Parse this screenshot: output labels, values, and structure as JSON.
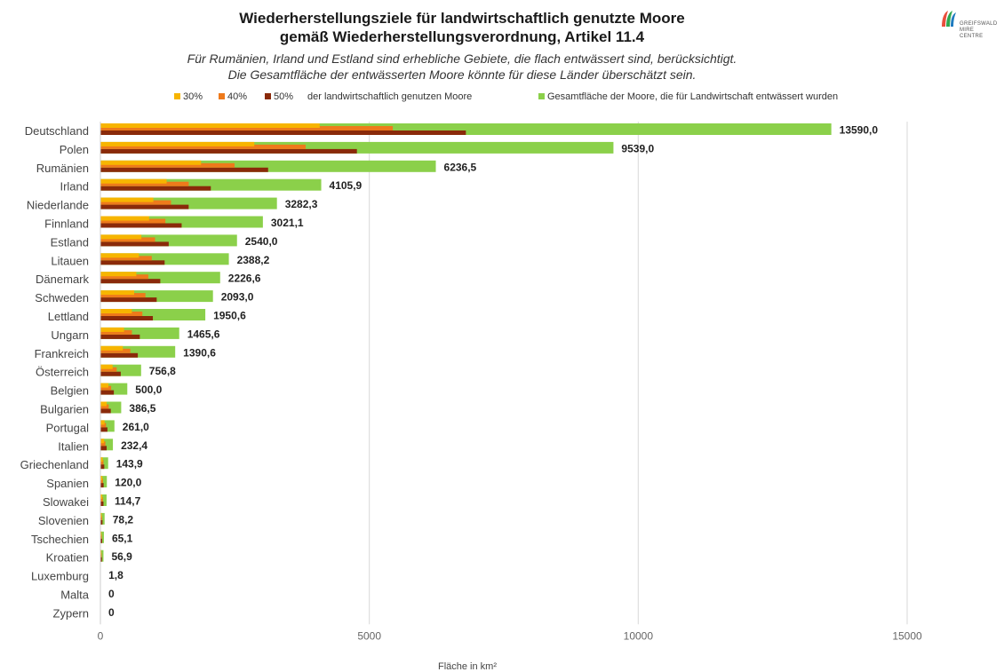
{
  "header": {
    "title_line1": "Wiederherstellungsziele für landwirtschaftlich genutzte Moore",
    "title_line2": "gemäß Wiederherstellungsverordnung, Artikel 11.4",
    "subtitle_line1": "Für Rumänien, Irland und Estland sind erhebliche Gebiete, die flach entwässert sind, berücksichtigt.",
    "subtitle_line2": "Die Gesamtfläche der entwässerten Moore könnte für diese Länder überschätzt sein."
  },
  "logo": {
    "line1": "GREIFSWALD",
    "line2": "MIRE",
    "line3": "CENTRE"
  },
  "legend": {
    "item_30": "30%",
    "item_40": "40%",
    "item_50": "50%",
    "suffix": "der landwirtschaftlich genutzen Moore",
    "total": "Gesamtfläche der Moore, die für Landwirtschaft entwässert wurden"
  },
  "colors": {
    "p30": "#f7b500",
    "p40": "#ee7a1b",
    "p50": "#8a2a0a",
    "total": "#8bd04a",
    "grid": "#d9d9d9"
  },
  "chart_data": {
    "type": "bar",
    "orientation": "horizontal",
    "categories": [
      "Deutschland",
      "Polen",
      "Rumänien",
      "Irland",
      "Niederlande",
      "Finnland",
      "Estland",
      "Litauen",
      "Dänemark",
      "Schweden",
      "Lettland",
      "Ungarn",
      "Frankreich",
      "Österreich",
      "Belgien",
      "Bulgarien",
      "Portugal",
      "Italien",
      "Griechenland",
      "Spanien",
      "Slowakei",
      "Slovenien",
      "Tschechien",
      "Kroatien",
      "Luxemburg",
      "Malta",
      "Zypern"
    ],
    "series": [
      {
        "name": "Gesamtfläche der Moore, die für Landwirtschaft entwässert wurden",
        "values": [
          13590.0,
          9539.0,
          6236.5,
          4105.9,
          3282.3,
          3021.1,
          2540.0,
          2388.2,
          2226.6,
          2093.0,
          1950.6,
          1465.6,
          1390.6,
          756.8,
          500.0,
          386.5,
          261.0,
          232.4,
          143.9,
          120.0,
          114.7,
          78.2,
          65.1,
          56.9,
          1.8,
          0,
          0
        ]
      },
      {
        "name": "30%",
        "values": [
          4077.0,
          2861.7,
          1871.0,
          1231.8,
          984.7,
          906.3,
          762.0,
          716.5,
          668.0,
          627.9,
          585.2,
          439.7,
          417.2,
          227.0,
          150.0,
          116.0,
          78.3,
          69.7,
          43.2,
          36.0,
          34.4,
          23.5,
          19.5,
          17.1,
          0.5,
          0,
          0
        ]
      },
      {
        "name": "40%",
        "values": [
          5436.0,
          3815.6,
          2494.6,
          1642.4,
          1312.9,
          1208.4,
          1016.0,
          955.3,
          890.6,
          837.2,
          780.2,
          586.2,
          556.2,
          302.7,
          200.0,
          154.6,
          104.4,
          93.0,
          57.6,
          48.0,
          45.9,
          31.3,
          26.0,
          22.8,
          0.7,
          0,
          0
        ]
      },
      {
        "name": "50%",
        "values": [
          6795.0,
          4769.5,
          3118.3,
          2053.0,
          1641.2,
          1510.6,
          1270.0,
          1194.1,
          1113.3,
          1046.5,
          975.3,
          732.8,
          695.3,
          378.4,
          250.0,
          193.3,
          130.5,
          116.2,
          72.0,
          60.0,
          57.4,
          39.1,
          32.6,
          28.5,
          0.9,
          0,
          0
        ]
      }
    ],
    "value_labels": [
      "13590,0",
      "9539,0",
      "6236,5",
      "4105,9",
      "3282,3",
      "3021,1",
      "2540,0",
      "2388,2",
      "2226,6",
      "2093,0",
      "1950,6",
      "1465,6",
      "1390,6",
      "756,8",
      "500,0",
      "386,5",
      "261,0",
      "232,4",
      "143,9",
      "120,0",
      "114,7",
      "78,2",
      "65,1",
      "56,9",
      "1,8",
      "0",
      "0"
    ],
    "x_ticks": [
      0,
      5000,
      10000,
      15000
    ],
    "x_tick_labels": [
      "0",
      "5000",
      "10000",
      "15000"
    ],
    "xlim": [
      0,
      15000
    ],
    "xlabel": "Fläche in km²",
    "ylabel": "",
    "grid": true,
    "legend_position": "top"
  }
}
